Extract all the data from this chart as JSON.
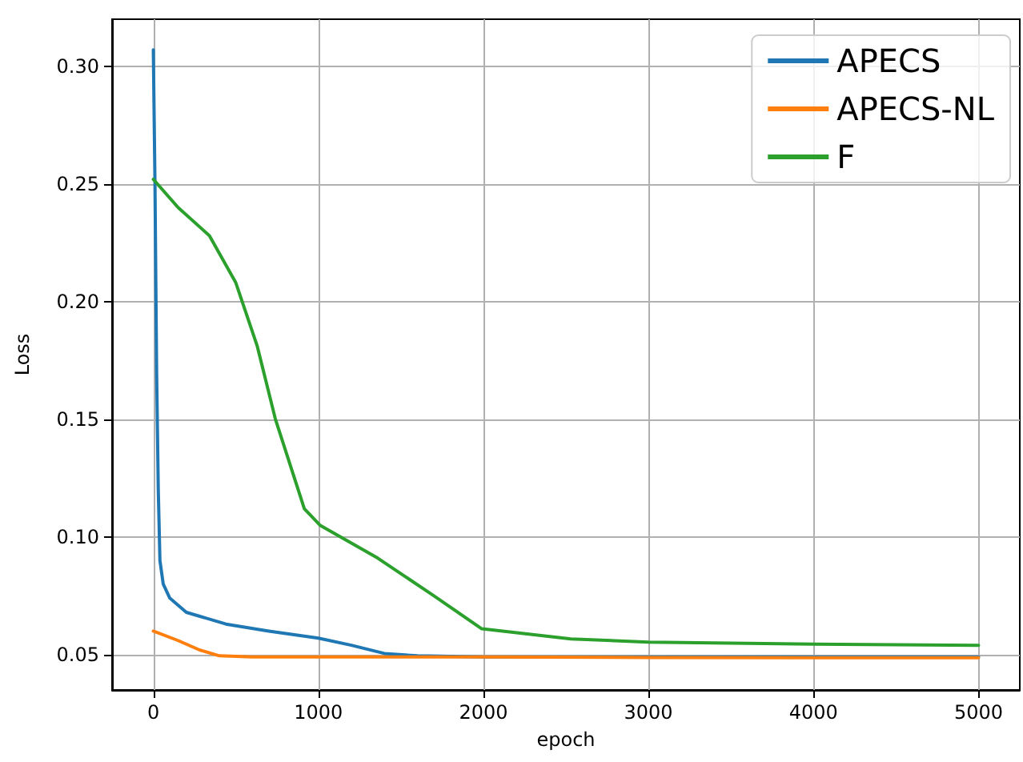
{
  "chart_data": {
    "type": "line",
    "xlabel": "epoch",
    "ylabel": "Loss",
    "xlim": [
      -250,
      5250
    ],
    "ylim": [
      0.035,
      0.32
    ],
    "xticks": [
      0,
      1000,
      2000,
      3000,
      4000,
      5000
    ],
    "yticks": [
      {
        "value": 0.05,
        "label": "0.05"
      },
      {
        "value": 0.1,
        "label": "0.10"
      },
      {
        "value": 0.15,
        "label": "0.15"
      },
      {
        "value": 0.2,
        "label": "0.20"
      },
      {
        "value": 0.25,
        "label": "0.25"
      },
      {
        "value": 0.3,
        "label": "0.30"
      }
    ],
    "grid": true,
    "legend": "top right",
    "marker": "none",
    "line_style": "solid",
    "series": [
      {
        "name": "APECS",
        "color": "#1f77b4",
        "x": [
          0,
          10,
          20,
          30,
          40,
          60,
          100,
          200,
          440,
          700,
          1000,
          1200,
          1400,
          1600,
          2000,
          3000,
          4000,
          5000
        ],
        "values": [
          0.307,
          0.25,
          0.17,
          0.12,
          0.09,
          0.08,
          0.074,
          0.068,
          0.063,
          0.06,
          0.057,
          0.054,
          0.0505,
          0.0495,
          0.049,
          0.049,
          0.049,
          0.049
        ]
      },
      {
        "name": "APECS-NL",
        "color": "#ff7f0e",
        "x": [
          0,
          150,
          280,
          400,
          600,
          1000,
          2000,
          3000,
          4000,
          5000
        ],
        "values": [
          0.06,
          0.056,
          0.052,
          0.0495,
          0.049,
          0.049,
          0.049,
          0.0488,
          0.0487,
          0.0487
        ]
      },
      {
        "name": "F",
        "color": "#2ca02c",
        "x": [
          0,
          150,
          340,
          500,
          630,
          740,
          915,
          1010,
          1360,
          1700,
          1990,
          2530,
          3000,
          4000,
          5000
        ],
        "values": [
          0.252,
          0.24,
          0.228,
          0.208,
          0.181,
          0.15,
          0.112,
          0.105,
          0.091,
          0.075,
          0.061,
          0.0567,
          0.0553,
          0.0545,
          0.054
        ]
      }
    ]
  }
}
